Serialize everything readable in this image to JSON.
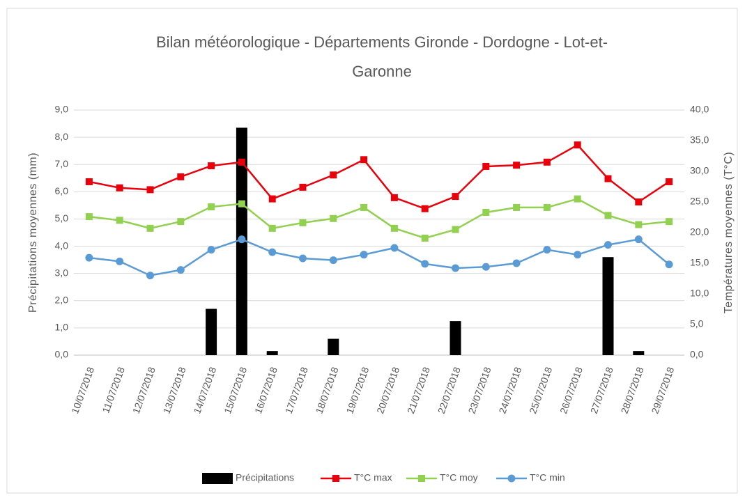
{
  "chart_data": {
    "type": "bar-line",
    "title": [
      "Bilan météorologique - Départements Gironde - Dordogne - Lot-et-",
      "Garonne"
    ],
    "y_label": "Précipitations moyennes (mm)",
    "y2_label": "Températures moyennes (T°C)",
    "categories": [
      "10/07/2018",
      "11/07/2018",
      "12/07/2018",
      "13/07/2018",
      "14/07/2018",
      "15/07/2018",
      "16/07/2018",
      "17/07/2018",
      "18/07/2018",
      "19/07/2018",
      "20/07/2018",
      "21/07/2018",
      "22/07/2018",
      "23/07/2018",
      "24/07/2018",
      "25/07/2018",
      "26/07/2018",
      "27/07/2018",
      "28/07/2018",
      "29/07/2018"
    ],
    "ylim": [
      0,
      9
    ],
    "yticks": [
      {
        "value": 0,
        "label": "0,0"
      },
      {
        "value": 1,
        "label": "1,0"
      },
      {
        "value": 2,
        "label": "2,0"
      },
      {
        "value": 3,
        "label": "3,0"
      },
      {
        "value": 4,
        "label": "4,0"
      },
      {
        "value": 5,
        "label": "5,0"
      },
      {
        "value": 6,
        "label": "6,0"
      },
      {
        "value": 7,
        "label": "7,0"
      },
      {
        "value": 8,
        "label": "8,0"
      },
      {
        "value": 9,
        "label": "9,0"
      }
    ],
    "y2lim": [
      0,
      40
    ],
    "y2ticks": [
      {
        "value": 0,
        "label": "0,0"
      },
      {
        "value": 5,
        "label": "5,0"
      },
      {
        "value": 10,
        "label": "10,0"
      },
      {
        "value": 15,
        "label": "15,0"
      },
      {
        "value": 20,
        "label": "20,0"
      },
      {
        "value": 25,
        "label": "25,0"
      },
      {
        "value": 30,
        "label": "30,0"
      },
      {
        "value": 35,
        "label": "35,0"
      },
      {
        "value": 40,
        "label": "40,0"
      }
    ],
    "grid": true,
    "legend": "bottom",
    "series": [
      {
        "name": "Précipitations",
        "type": "bar",
        "color": "#000000",
        "axis": "y",
        "values": [
          0,
          0,
          0,
          0,
          1.7,
          8.35,
          0.15,
          0,
          0.6,
          0,
          0,
          0,
          1.25,
          0,
          0,
          0,
          0,
          3.6,
          0.15,
          0
        ]
      },
      {
        "name": "T°C max",
        "type": "line",
        "color": "#e8000b",
        "marker": "square",
        "axis": "y2",
        "values": [
          28.3,
          27.3,
          27.0,
          29.1,
          30.9,
          31.5,
          25.5,
          27.4,
          29.4,
          31.9,
          25.7,
          23.9,
          25.9,
          30.8,
          31.0,
          31.5,
          34.3,
          28.8,
          25.0,
          28.3
        ]
      },
      {
        "name": "T°C moy",
        "type": "line",
        "color": "#92d050",
        "marker": "square",
        "axis": "y2",
        "values": [
          22.6,
          22.0,
          20.7,
          21.8,
          24.2,
          24.7,
          20.7,
          21.6,
          22.3,
          24.1,
          20.7,
          19.1,
          20.5,
          23.3,
          24.1,
          24.1,
          25.5,
          22.8,
          21.3,
          21.8
        ]
      },
      {
        "name": "T°C min",
        "type": "line",
        "color": "#5b9bd5",
        "marker": "circle",
        "axis": "y2",
        "values": [
          15.9,
          15.3,
          13.0,
          13.9,
          17.2,
          18.9,
          16.8,
          15.8,
          15.5,
          16.4,
          17.5,
          14.9,
          14.2,
          14.4,
          15.0,
          17.2,
          16.4,
          18.0,
          18.9,
          14.8
        ]
      }
    ]
  }
}
